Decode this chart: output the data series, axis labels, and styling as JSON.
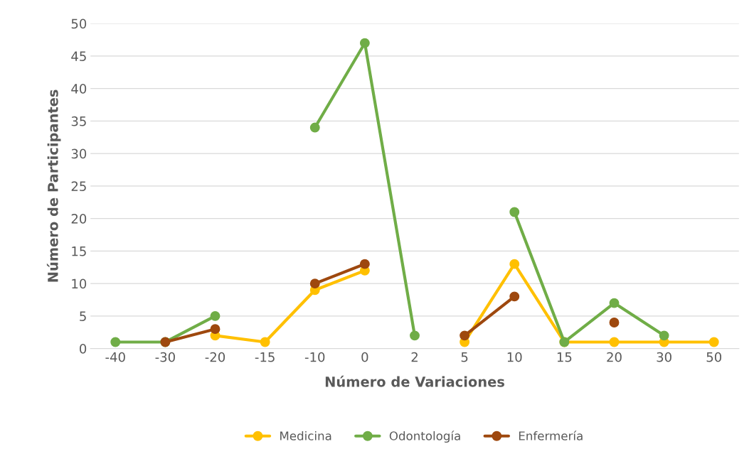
{
  "chart_data": {
    "type": "line",
    "xlabel": "Número de Variaciones",
    "ylabel": "Número de Participantes",
    "categories": [
      "-40",
      "-30",
      "-20",
      "-15",
      "-10",
      "0",
      "2",
      "5",
      "10",
      "15",
      "20",
      "30",
      "50"
    ],
    "series": [
      {
        "name": "Medicina",
        "color": "#ffc000",
        "values": [
          null,
          null,
          2,
          1,
          9,
          12,
          null,
          1,
          13,
          1,
          1,
          1,
          1
        ]
      },
      {
        "name": "Odontología",
        "color": "#70ad47",
        "values": [
          1,
          1,
          5,
          null,
          34,
          47,
          2,
          null,
          21,
          1,
          7,
          2,
          null
        ]
      },
      {
        "name": "Enfermería",
        "color": "#9e480e",
        "values": [
          null,
          1,
          3,
          null,
          10,
          13,
          null,
          2,
          8,
          null,
          4,
          null,
          null
        ]
      }
    ],
    "ylim": [
      0,
      50
    ],
    "yticks": [
      0,
      5,
      10,
      15,
      20,
      25,
      30,
      35,
      40,
      45,
      50
    ],
    "grid": "y",
    "legend": "bottom",
    "marker": "circle",
    "line_style": "solid"
  }
}
